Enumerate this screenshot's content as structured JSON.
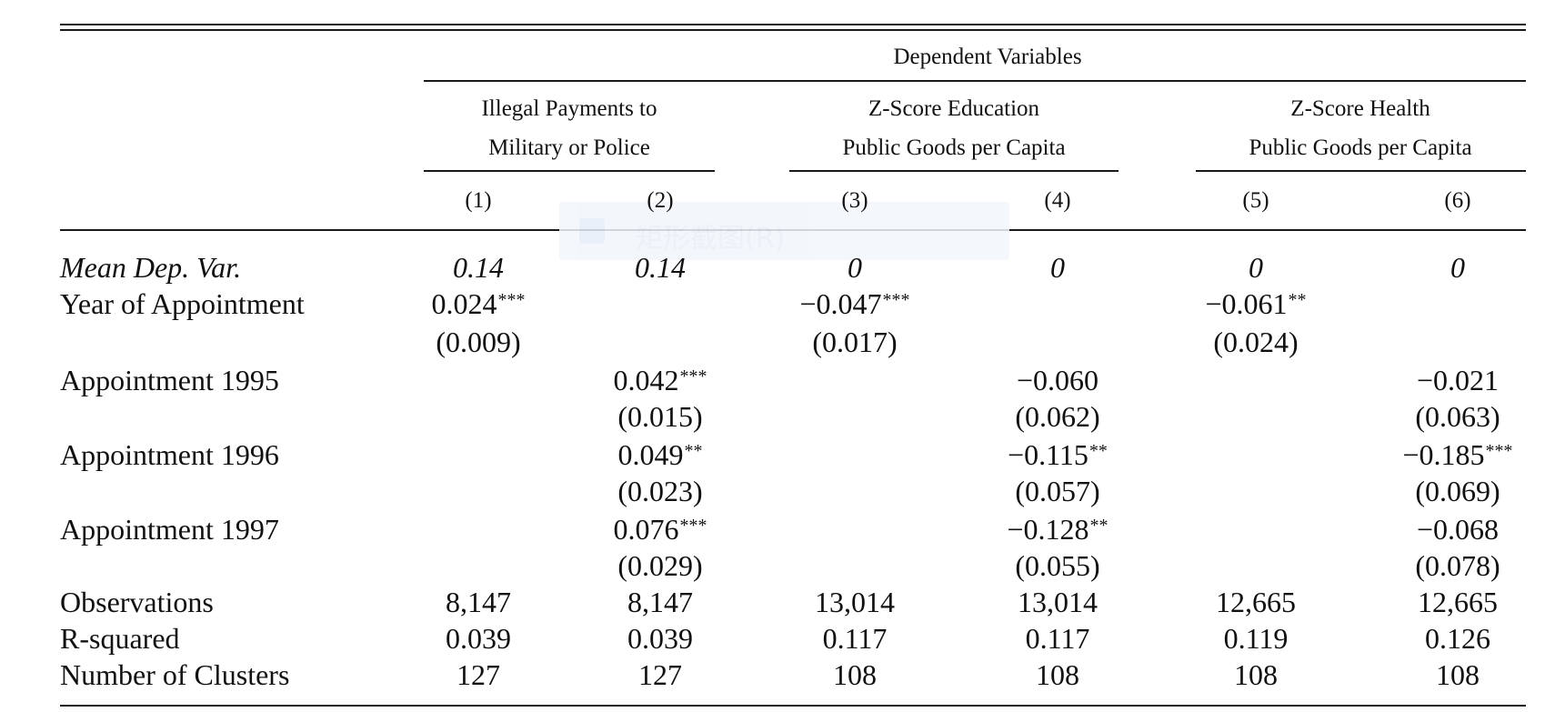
{
  "table": {
    "super_header": "Dependent Variables",
    "groups": [
      {
        "line1": "Illegal Payments to",
        "line2": "Military or Police"
      },
      {
        "line1": "Z-Score Education",
        "line2": "Public Goods per Capita"
      },
      {
        "line1": "Z-Score Health",
        "line2": "Public Goods per Capita"
      }
    ],
    "column_numbers": [
      "(1)",
      "(2)",
      "(3)",
      "(4)",
      "(5)",
      "(6)"
    ],
    "rows": [
      {
        "label": "Mean Dep. Var.",
        "italic": true,
        "cells": [
          {
            "v": "0.14",
            "s": ""
          },
          {
            "v": "0.14",
            "s": ""
          },
          {
            "v": "0",
            "s": ""
          },
          {
            "v": "0",
            "s": ""
          },
          {
            "v": "0",
            "s": ""
          },
          {
            "v": "0",
            "s": ""
          }
        ]
      },
      {
        "label": "Year of Appointment",
        "italic": false,
        "cells": [
          {
            "v": "0.024",
            "s": "***"
          },
          {
            "v": "",
            "s": ""
          },
          {
            "v": "−0.047",
            "s": "***"
          },
          {
            "v": "",
            "s": ""
          },
          {
            "v": "−0.061",
            "s": "**"
          },
          {
            "v": "",
            "s": ""
          }
        ],
        "se": [
          "(0.009)",
          "",
          "(0.017)",
          "",
          "(0.024)",
          ""
        ]
      },
      {
        "label": "Appointment 1995",
        "italic": false,
        "cells": [
          {
            "v": "",
            "s": ""
          },
          {
            "v": "0.042",
            "s": "***"
          },
          {
            "v": "",
            "s": ""
          },
          {
            "v": "−0.060",
            "s": ""
          },
          {
            "v": "",
            "s": ""
          },
          {
            "v": "−0.021",
            "s": ""
          }
        ],
        "se": [
          "",
          "(0.015)",
          "",
          "(0.062)",
          "",
          "(0.063)"
        ]
      },
      {
        "label": "Appointment 1996",
        "italic": false,
        "cells": [
          {
            "v": "",
            "s": ""
          },
          {
            "v": "0.049",
            "s": "**"
          },
          {
            "v": "",
            "s": ""
          },
          {
            "v": "−0.115",
            "s": "**"
          },
          {
            "v": "",
            "s": ""
          },
          {
            "v": "−0.185",
            "s": "***"
          }
        ],
        "se": [
          "",
          "(0.023)",
          "",
          "(0.057)",
          "",
          "(0.069)"
        ]
      },
      {
        "label": "Appointment 1997",
        "italic": false,
        "cells": [
          {
            "v": "",
            "s": ""
          },
          {
            "v": "0.076",
            "s": "***"
          },
          {
            "v": "",
            "s": ""
          },
          {
            "v": "−0.128",
            "s": "**"
          },
          {
            "v": "",
            "s": ""
          },
          {
            "v": "−0.068",
            "s": ""
          }
        ],
        "se": [
          "",
          "(0.029)",
          "",
          "(0.055)",
          "",
          "(0.078)"
        ]
      },
      {
        "label": "Observations",
        "italic": false,
        "cells": [
          {
            "v": "8,147",
            "s": ""
          },
          {
            "v": "8,147",
            "s": ""
          },
          {
            "v": "13,014",
            "s": ""
          },
          {
            "v": "13,014",
            "s": ""
          },
          {
            "v": "12,665",
            "s": ""
          },
          {
            "v": "12,665",
            "s": ""
          }
        ]
      },
      {
        "label": "R-squared",
        "italic": false,
        "cells": [
          {
            "v": "0.039",
            "s": ""
          },
          {
            "v": "0.039",
            "s": ""
          },
          {
            "v": "0.117",
            "s": ""
          },
          {
            "v": "0.117",
            "s": ""
          },
          {
            "v": "0.119",
            "s": ""
          },
          {
            "v": "0.126",
            "s": ""
          }
        ]
      },
      {
        "label": "Number of Clusters",
        "italic": false,
        "cells": [
          {
            "v": "127",
            "s": ""
          },
          {
            "v": "127",
            "s": ""
          },
          {
            "v": "108",
            "s": ""
          },
          {
            "v": "108",
            "s": ""
          },
          {
            "v": "108",
            "s": ""
          },
          {
            "v": "108",
            "s": ""
          }
        ]
      }
    ]
  },
  "overlay": {
    "icon": "screenshot-icon",
    "text": "矩形截图(R)"
  }
}
